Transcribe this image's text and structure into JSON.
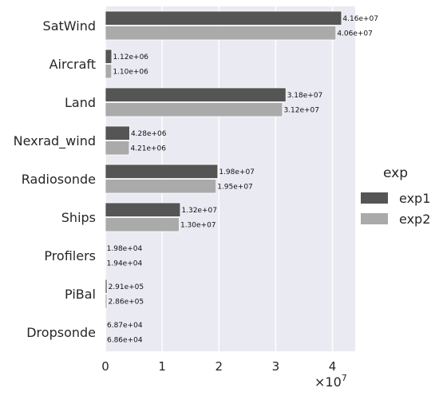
{
  "chart_data": {
    "type": "bar",
    "orientation": "horizontal",
    "categories": [
      "SatWind",
      "Aircraft",
      "Land",
      "Nexrad_wind",
      "Radiosonde",
      "Ships",
      "Profilers",
      "PiBal",
      "Dropsonde"
    ],
    "series": [
      {
        "name": "exp1",
        "color": "#555555",
        "values": [
          41600000,
          1120000,
          31800000,
          4280000,
          19800000,
          13200000,
          19800,
          291000,
          68700
        ],
        "labels": [
          "4.16e+07",
          "1.12e+06",
          "3.18e+07",
          "4.28e+06",
          "1.98e+07",
          "1.32e+07",
          "1.98e+04",
          "2.91e+05",
          "6.87e+04"
        ]
      },
      {
        "name": "exp2",
        "color": "#aaaaaa",
        "values": [
          40600000,
          1100000,
          31200000,
          4210000,
          19500000,
          13000000,
          19400,
          286000,
          68600
        ],
        "labels": [
          "4.06e+07",
          "1.10e+06",
          "3.12e+07",
          "4.21e+06",
          "1.95e+07",
          "1.30e+07",
          "1.94e+04",
          "2.86e+05",
          "6.86e+04"
        ]
      }
    ],
    "xticks": [
      "0",
      "1",
      "2",
      "3",
      "4"
    ],
    "xtick_values": [
      0,
      10000000,
      20000000,
      30000000,
      40000000
    ],
    "xlim": [
      0,
      44000000
    ],
    "offset_text": "×10",
    "offset_exponent": "7",
    "legend": {
      "title": "exp",
      "position": "right"
    },
    "background": "#eaeaf2",
    "grid": true
  }
}
